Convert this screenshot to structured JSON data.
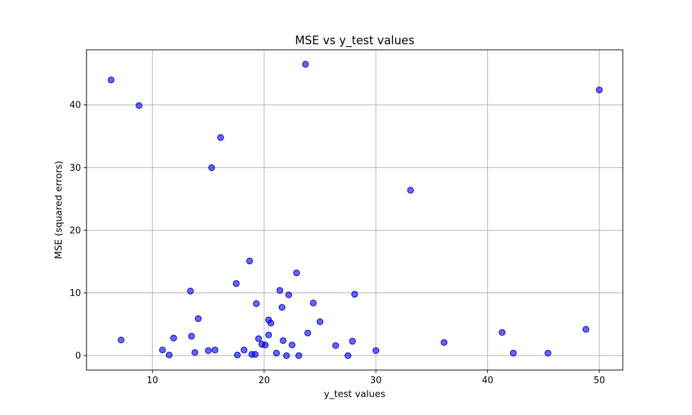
{
  "chart_data": {
    "type": "scatter",
    "title": "MSE vs y_test values",
    "xlabel": "y_test values",
    "ylabel": "MSE (squared errors)",
    "xlim": [
      4.1,
      52.1
    ],
    "ylim": [
      -2.3,
      48.8
    ],
    "xticks": [
      10,
      20,
      30,
      40,
      50
    ],
    "yticks": [
      0,
      10,
      20,
      30,
      40
    ],
    "grid": true,
    "point_color": "#0000ff",
    "point_alpha": 0.6,
    "series": [
      {
        "points": [
          [
            6.3,
            44.0
          ],
          [
            8.8,
            39.9
          ],
          [
            7.2,
            2.5
          ],
          [
            10.9,
            0.9
          ],
          [
            11.5,
            0.1
          ],
          [
            11.9,
            2.8
          ],
          [
            13.4,
            10.3
          ],
          [
            13.5,
            3.1
          ],
          [
            13.8,
            0.5
          ],
          [
            14.1,
            5.9
          ],
          [
            15.0,
            0.8
          ],
          [
            15.3,
            30.0
          ],
          [
            15.6,
            0.9
          ],
          [
            16.1,
            34.8
          ],
          [
            17.5,
            11.5
          ],
          [
            17.6,
            0.1
          ],
          [
            18.2,
            0.9
          ],
          [
            18.7,
            15.1
          ],
          [
            18.9,
            0.2
          ],
          [
            19.2,
            0.2
          ],
          [
            19.3,
            8.3
          ],
          [
            19.5,
            2.7
          ],
          [
            19.8,
            1.8
          ],
          [
            20.1,
            1.7
          ],
          [
            20.4,
            3.3
          ],
          [
            20.4,
            5.7
          ],
          [
            20.6,
            5.2
          ],
          [
            21.1,
            0.4
          ],
          [
            21.4,
            10.4
          ],
          [
            21.6,
            7.7
          ],
          [
            21.7,
            2.4
          ],
          [
            22.0,
            0.0
          ],
          [
            22.2,
            9.7
          ],
          [
            22.5,
            1.7
          ],
          [
            22.9,
            13.2
          ],
          [
            23.1,
            0.0
          ],
          [
            23.7,
            46.5
          ],
          [
            23.9,
            3.6
          ],
          [
            24.4,
            8.4
          ],
          [
            25.0,
            5.4
          ],
          [
            26.4,
            1.6
          ],
          [
            27.5,
            0.0
          ],
          [
            27.9,
            2.3
          ],
          [
            28.1,
            9.8
          ],
          [
            30.0,
            0.8
          ],
          [
            33.1,
            26.4
          ],
          [
            36.1,
            2.1
          ],
          [
            41.3,
            3.7
          ],
          [
            42.3,
            0.4
          ],
          [
            45.4,
            0.4
          ],
          [
            48.8,
            4.2
          ],
          [
            50.0,
            42.4
          ]
        ]
      }
    ]
  }
}
